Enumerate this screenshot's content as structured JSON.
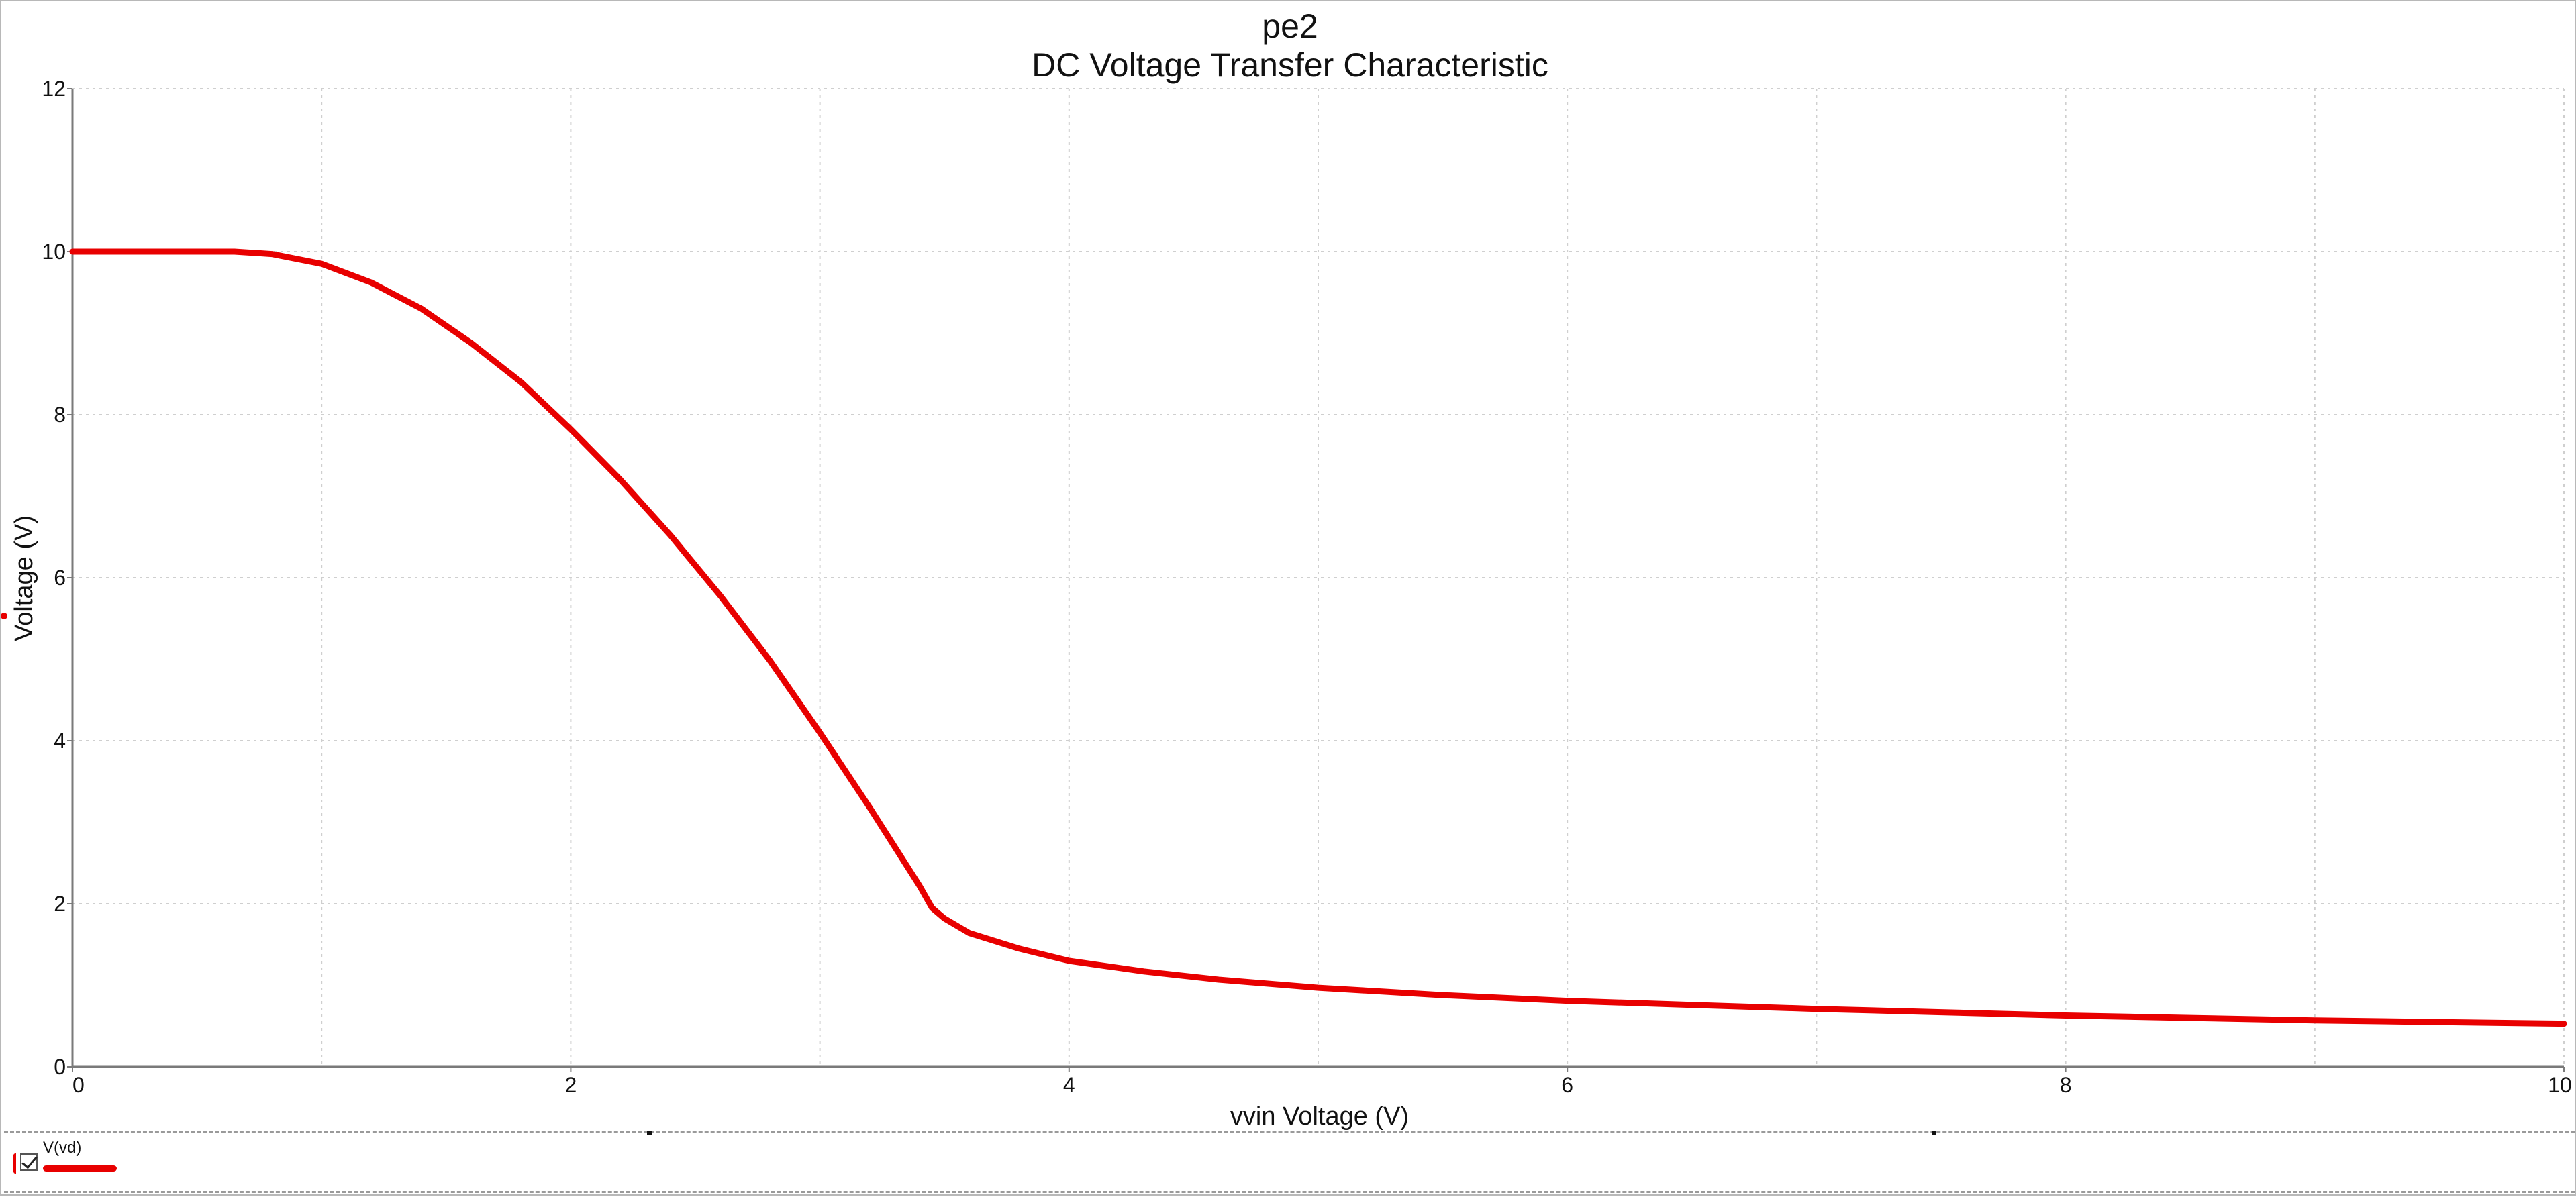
{
  "chart_data": {
    "type": "line",
    "title": "pe2",
    "subtitle": "DC Voltage Transfer Characteristic",
    "xlabel": "vvin Voltage (V)",
    "ylabel": "Voltage (V)",
    "xlim": [
      0,
      10
    ],
    "ylim": [
      0,
      12
    ],
    "xticks": [
      "0",
      "2",
      "4",
      "6",
      "8",
      "10"
    ],
    "yticks": [
      "0",
      "2",
      "4",
      "6",
      "8",
      "10",
      "12"
    ],
    "grid": true,
    "legend_position": "bottom-left",
    "series": [
      {
        "name": "V(vd)",
        "color": "#e80000",
        "x": [
          0,
          0.25,
          0.5,
          0.65,
          0.8,
          1.0,
          1.2,
          1.4,
          1.6,
          1.8,
          2.0,
          2.2,
          2.4,
          2.6,
          2.8,
          3.0,
          3.2,
          3.4,
          3.45,
          3.5,
          3.6,
          3.8,
          4.0,
          4.3,
          4.6,
          5.0,
          5.5,
          6.0,
          6.5,
          7.0,
          7.5,
          8.0,
          8.5,
          9.0,
          9.5,
          10.0
        ],
        "values": [
          10.0,
          10.0,
          10.0,
          10.0,
          9.97,
          9.85,
          9.62,
          9.3,
          8.88,
          8.4,
          7.82,
          7.2,
          6.52,
          5.78,
          4.98,
          4.1,
          3.18,
          2.22,
          1.95,
          1.82,
          1.64,
          1.45,
          1.3,
          1.17,
          1.07,
          0.97,
          0.88,
          0.81,
          0.76,
          0.71,
          0.67,
          0.63,
          0.6,
          0.57,
          0.55,
          0.53
        ]
      }
    ]
  }
}
